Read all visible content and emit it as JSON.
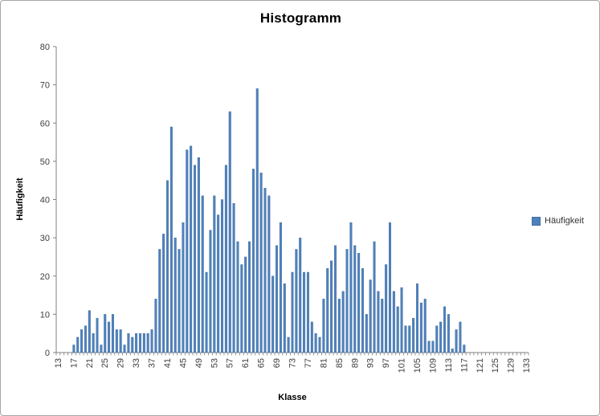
{
  "window": {
    "title": "Histogramm"
  },
  "chart_data": {
    "type": "bar",
    "title": "Histogramm",
    "xlabel": "Klasse",
    "ylabel": "Häufigkeit",
    "ylim": [
      0,
      80
    ],
    "y_ticks": [
      0,
      10,
      20,
      30,
      40,
      50,
      60,
      70,
      80
    ],
    "x_start": 13,
    "x_end": 133,
    "x_tick_labels": [
      "13",
      "17",
      "21",
      "25",
      "29",
      "33",
      "37",
      "41",
      "45",
      "49",
      "53",
      "57",
      "61",
      "65",
      "69",
      "73",
      "77",
      "81",
      "85",
      "89",
      "93",
      "97",
      "101",
      "105",
      "109",
      "113",
      "117",
      "121",
      "125",
      "129",
      "133"
    ],
    "grid": false,
    "legend_position": "right",
    "series": [
      {
        "name": "Häufigkeit",
        "values": [
          0,
          0,
          0,
          0,
          2,
          4,
          6,
          7,
          11,
          5,
          9,
          2,
          10,
          8,
          10,
          6,
          6,
          2,
          5,
          4,
          5,
          5,
          5,
          5,
          6,
          14,
          27,
          31,
          45,
          59,
          30,
          27,
          34,
          53,
          54,
          49,
          51,
          41,
          21,
          32,
          41,
          36,
          40,
          49,
          63,
          39,
          29,
          23,
          25,
          29,
          48,
          69,
          47,
          43,
          41,
          20,
          28,
          34,
          18,
          4,
          21,
          27,
          30,
          21,
          21,
          8,
          5,
          4,
          14,
          22,
          24,
          28,
          14,
          16,
          27,
          34,
          28,
          26,
          22,
          10,
          19,
          29,
          16,
          14,
          23,
          34,
          16,
          12,
          17,
          7,
          7,
          9,
          18,
          13,
          14,
          3,
          3,
          7,
          8,
          12,
          10,
          1,
          6,
          8,
          2,
          0,
          0,
          0,
          0,
          0,
          0,
          0,
          0,
          0,
          0,
          0,
          0,
          0,
          0,
          0,
          0
        ]
      }
    ]
  },
  "legend": {
    "label": "Häufigkeit"
  },
  "colors": {
    "bar_fill": "#4f81bd",
    "bar_edge": "#3f6d9e",
    "axis": "#808080",
    "tick_label": "#3f3f3f",
    "title_text": "#000000",
    "background": "#ffffff",
    "chart_border": "#a6a6a6"
  }
}
